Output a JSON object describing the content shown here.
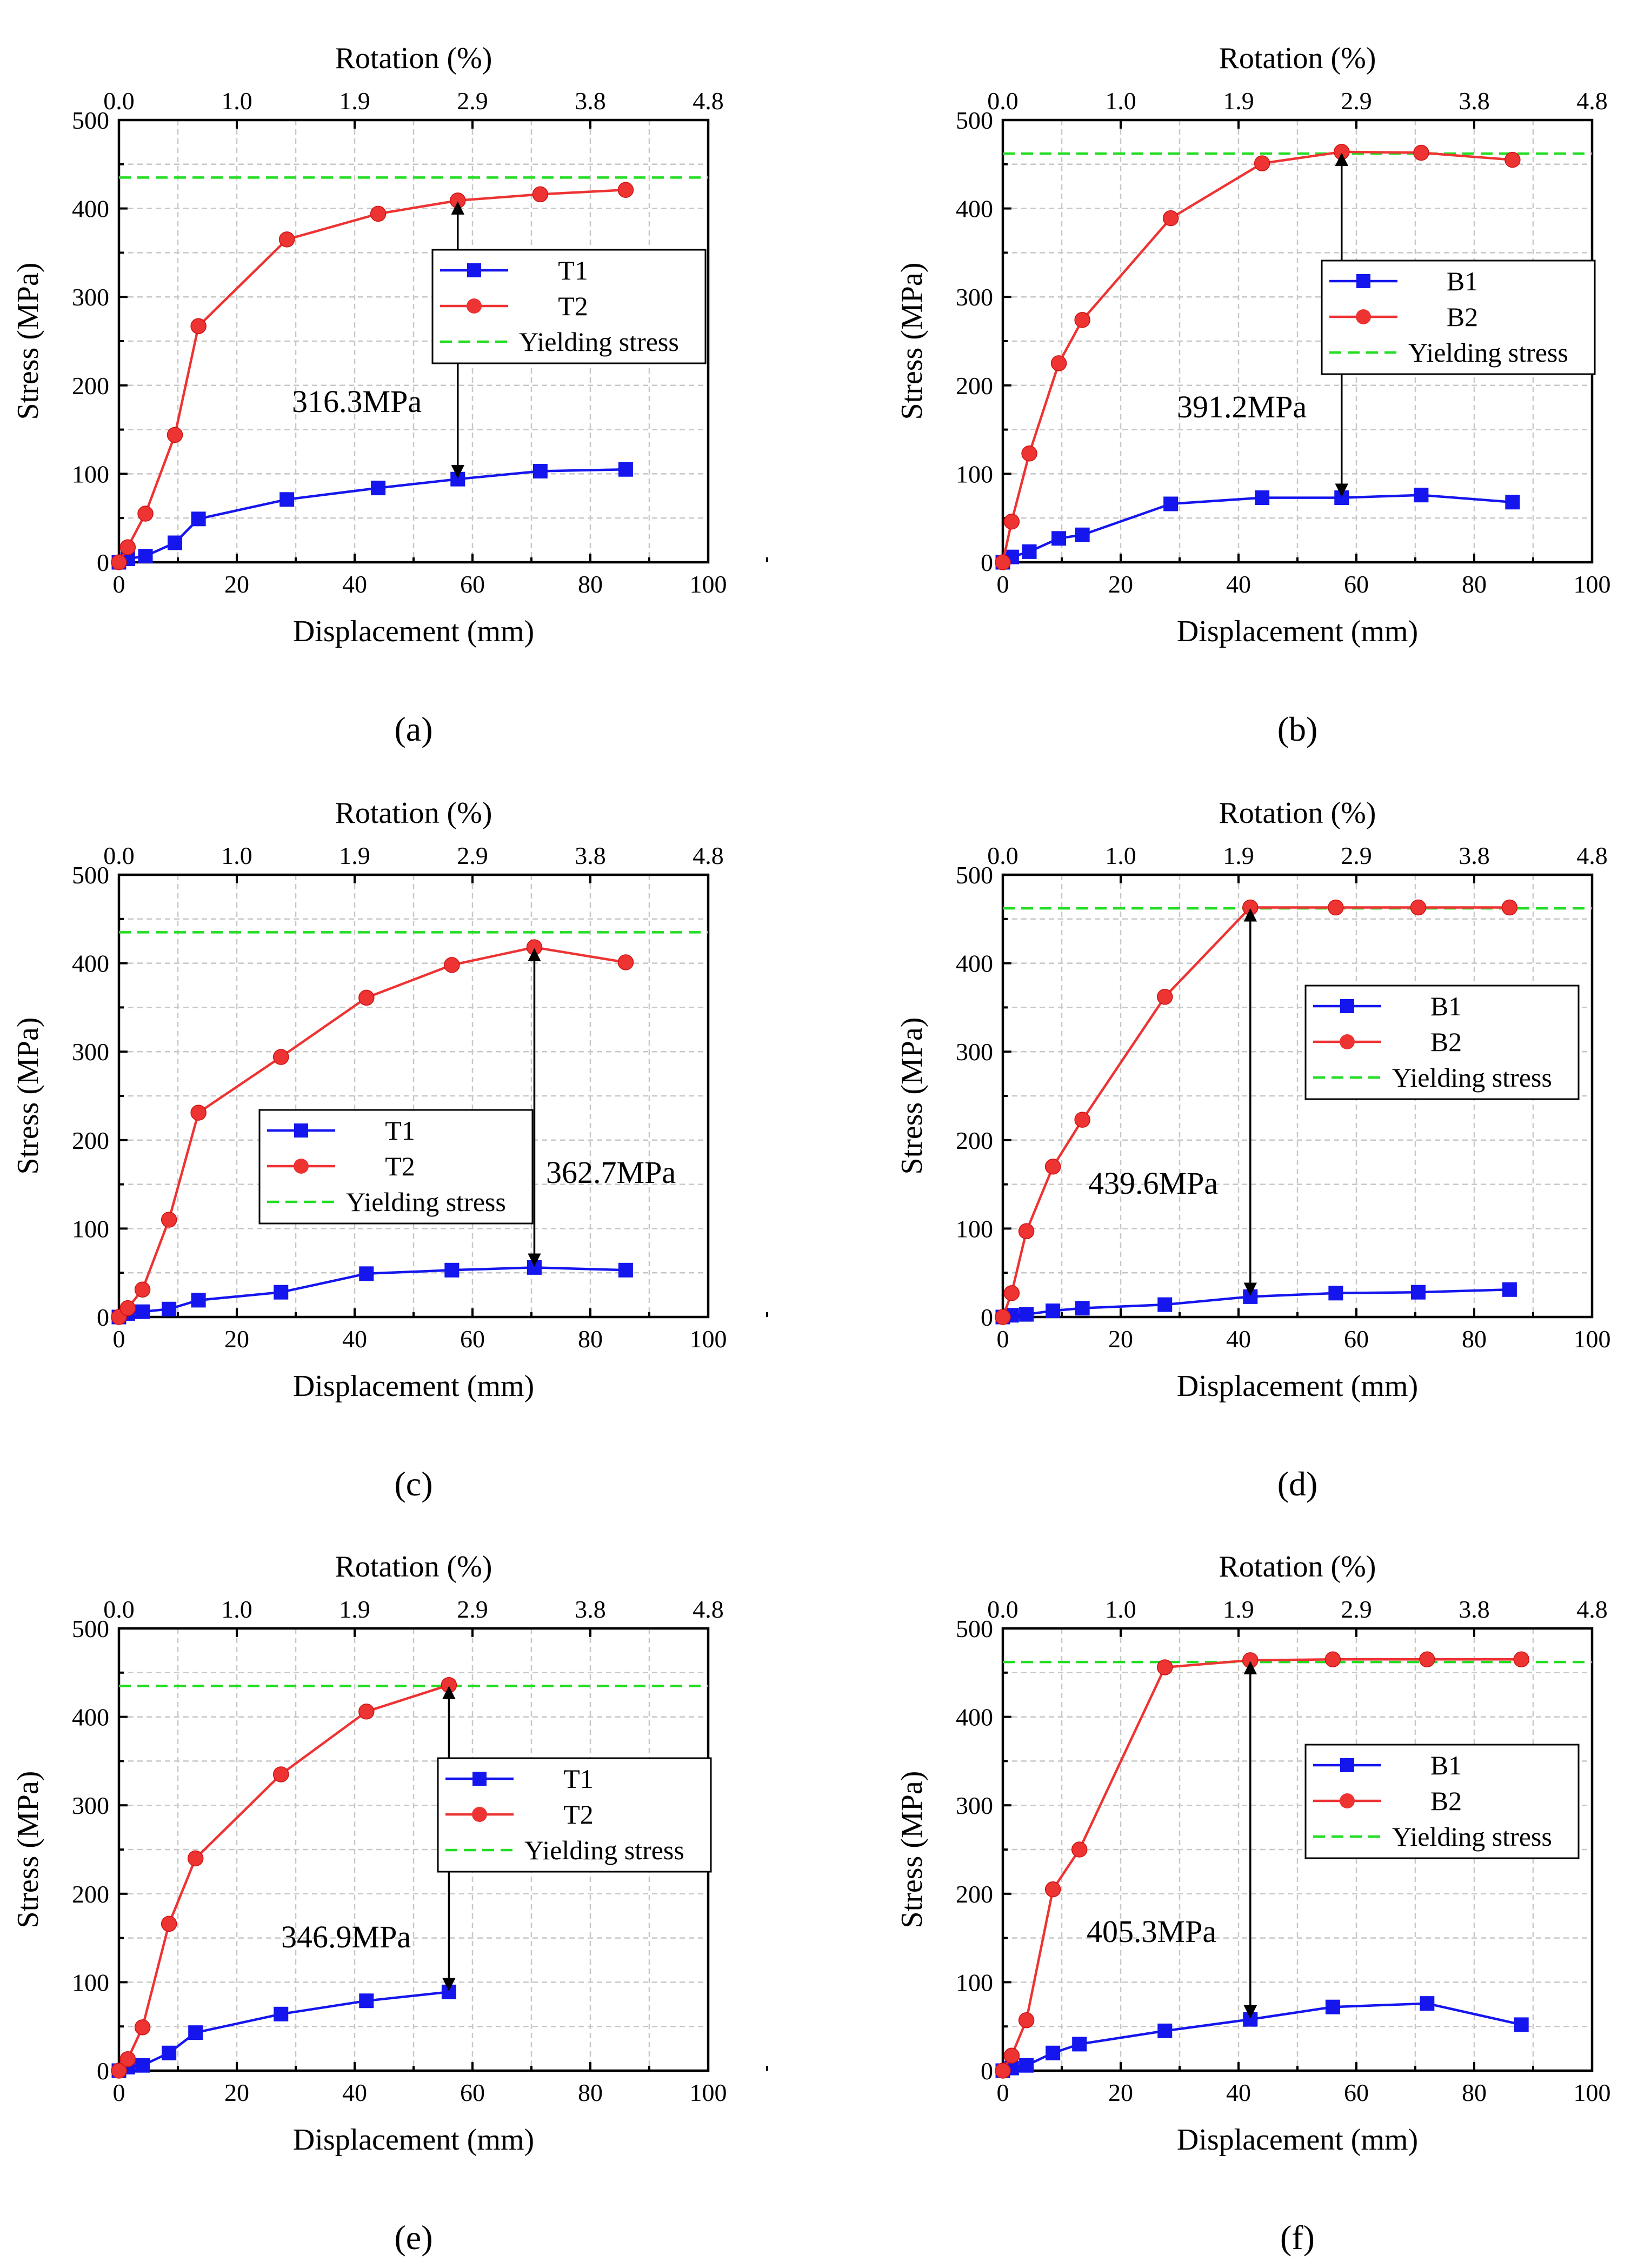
{
  "figure": {
    "top_axis_title": "Rotation (%)",
    "y_axis_title": "Stress (MPa)",
    "x_axis_title": "Displacement (mm)",
    "x_ticks": [
      "0",
      "20",
      "40",
      "60",
      "80",
      "100"
    ],
    "y_ticks": [
      "0",
      "100",
      "200",
      "300",
      "400",
      "500"
    ],
    "top_ticks": [
      "0.0",
      "1.0",
      "1.9",
      "2.9",
      "3.8",
      "4.8"
    ]
  },
  "colors": {
    "series1": "#1515ee",
    "series2": "#ee3333",
    "yield": "#22dd22"
  },
  "chart_data": [
    {
      "panel": "a",
      "label": "(a)",
      "type": "line",
      "title": "",
      "xlabel": "Displacement (mm)",
      "ylabel": "Stress (MPa)",
      "x2label": "Rotation (%)",
      "xlim": [
        0,
        100
      ],
      "ylim": [
        0,
        500
      ],
      "legend_pos": "right",
      "series": [
        {
          "name": "T1",
          "marker": "square",
          "x": [
            0,
            1.5,
            4.5,
            9.5,
            13.5,
            28.5,
            44,
            57.5,
            71.5,
            86
          ],
          "y": [
            0,
            4,
            7,
            22,
            49,
            71,
            84,
            94,
            103,
            105
          ]
        },
        {
          "name": "T2",
          "marker": "circle",
          "x": [
            0,
            1.5,
            4.5,
            9.5,
            13.5,
            28.5,
            44,
            57.5,
            71.5,
            86
          ],
          "y": [
            0,
            17,
            55,
            144,
            267,
            365,
            394,
            409,
            416,
            421
          ]
        }
      ],
      "yield": {
        "name": "Yielding stress",
        "value": 435
      },
      "annotation": {
        "text": "316.3MPa",
        "x": 57.5,
        "y_from": 94,
        "y_to": 409
      }
    },
    {
      "panel": "b",
      "label": "(b)",
      "type": "line",
      "title": "",
      "xlabel": "Displacement (mm)",
      "ylabel": "Stress (MPa)",
      "x2label": "Rotation (%)",
      "xlim": [
        0,
        100
      ],
      "ylim": [
        0,
        500
      ],
      "legend_pos": "right",
      "series": [
        {
          "name": "B1",
          "marker": "square",
          "x": [
            0,
            1.5,
            4.5,
            9.5,
            13.5,
            28.5,
            44,
            57.5,
            71,
            86.5
          ],
          "y": [
            0,
            6,
            12,
            27,
            31,
            66,
            73,
            73,
            76,
            68
          ]
        },
        {
          "name": "B2",
          "marker": "circle",
          "x": [
            0,
            1.5,
            4.5,
            9.5,
            13.5,
            28.5,
            44,
            57.5,
            71,
            86.5
          ],
          "y": [
            0,
            46,
            123,
            225,
            274,
            389,
            451,
            464,
            463,
            455
          ]
        }
      ],
      "yield": {
        "name": "Yielding stress",
        "value": 462
      },
      "annotation": {
        "text": "391.2MPa",
        "x": 57.5,
        "y_from": 73,
        "y_to": 464
      }
    },
    {
      "panel": "c",
      "label": "(c)",
      "type": "line",
      "title": "",
      "xlabel": "Displacement (mm)",
      "ylabel": "Stress (MPa)",
      "x2label": "Rotation (%)",
      "xlim": [
        0,
        100
      ],
      "ylim": [
        0,
        500
      ],
      "legend_pos": "center",
      "series": [
        {
          "name": "T1",
          "marker": "square",
          "x": [
            0,
            1.5,
            4,
            8.5,
            13.5,
            27.5,
            42,
            56.5,
            70.5,
            86
          ],
          "y": [
            0,
            4,
            6,
            9,
            19,
            28,
            49,
            53,
            56,
            53
          ]
        },
        {
          "name": "T2",
          "marker": "circle",
          "x": [
            0,
            1.5,
            4,
            8.5,
            13.5,
            27.5,
            42,
            56.5,
            70.5,
            86
          ],
          "y": [
            0,
            10,
            31,
            110,
            231,
            294,
            361,
            398,
            418,
            401
          ]
        }
      ],
      "yield": {
        "name": "Yielding stress",
        "value": 435
      },
      "annotation": {
        "text": "362.7MPa",
        "x": 70.5,
        "y_from": 56,
        "y_to": 418
      }
    },
    {
      "panel": "d",
      "label": "(d)",
      "type": "line",
      "title": "",
      "xlabel": "Displacement (mm)",
      "ylabel": "Stress (MPa)",
      "x2label": "Rotation (%)",
      "xlim": [
        0,
        100
      ],
      "ylim": [
        0,
        500
      ],
      "legend_pos": "right",
      "series": [
        {
          "name": "B1",
          "marker": "square",
          "x": [
            0,
            1.5,
            4,
            8.5,
            13.5,
            27.5,
            42,
            56.5,
            70.5,
            86
          ],
          "y": [
            0,
            2,
            3,
            7,
            10,
            14,
            23,
            27,
            28,
            31
          ]
        },
        {
          "name": "B2",
          "marker": "circle",
          "x": [
            0,
            1.5,
            4,
            8.5,
            13.5,
            27.5,
            42,
            56.5,
            70.5,
            86
          ],
          "y": [
            0,
            27,
            97,
            170,
            223,
            362,
            463,
            463,
            463,
            463
          ]
        }
      ],
      "yield": {
        "name": "Yielding stress",
        "value": 462
      },
      "annotation": {
        "text": "439.6MPa",
        "x": 42,
        "y_from": 23,
        "y_to": 463
      }
    },
    {
      "panel": "e",
      "label": "(e)",
      "type": "line",
      "title": "",
      "xlabel": "Displacement (mm)",
      "ylabel": "Stress (MPa)",
      "x2label": "Rotation (%)",
      "xlim": [
        0,
        100
      ],
      "ylim": [
        0,
        500
      ],
      "legend_pos": "right",
      "series": [
        {
          "name": "T1",
          "marker": "square",
          "x": [
            0,
            1.5,
            4,
            8.5,
            13,
            27.5,
            42,
            56
          ],
          "y": [
            0,
            4,
            6,
            20,
            43,
            64,
            79,
            89
          ]
        },
        {
          "name": "T2",
          "marker": "circle",
          "x": [
            0,
            1.5,
            4,
            8.5,
            13,
            27.5,
            42,
            56
          ],
          "y": [
            0,
            13,
            49,
            166,
            240,
            335,
            406,
            436
          ]
        }
      ],
      "yield": {
        "name": "Yielding stress",
        "value": 435
      },
      "annotation": {
        "text": "346.9MPa",
        "x": 56,
        "y_from": 89,
        "y_to": 436
      }
    },
    {
      "panel": "f",
      "label": "(f)",
      "type": "line",
      "title": "",
      "xlabel": "Displacement (mm)",
      "ylabel": "Stress (MPa)",
      "x2label": "Rotation (%)",
      "xlim": [
        0,
        100
      ],
      "ylim": [
        0,
        500
      ],
      "legend_pos": "right",
      "series": [
        {
          "name": "B1",
          "marker": "square",
          "x": [
            0,
            1.5,
            4,
            8.5,
            13,
            27.5,
            42,
            56,
            72,
            88
          ],
          "y": [
            0,
            3,
            6,
            20,
            30,
            45,
            58,
            72,
            76,
            52
          ]
        },
        {
          "name": "B2",
          "marker": "circle",
          "x": [
            0,
            1.5,
            4,
            8.5,
            13,
            27.5,
            42,
            56,
            72,
            88
          ],
          "y": [
            0,
            17,
            57,
            205,
            250,
            456,
            464,
            465,
            465,
            465
          ]
        }
      ],
      "yield": {
        "name": "Yielding stress",
        "value": 462
      },
      "annotation": {
        "text": "405.3MPa",
        "x": 42,
        "y_from": 58,
        "y_to": 464
      }
    }
  ]
}
